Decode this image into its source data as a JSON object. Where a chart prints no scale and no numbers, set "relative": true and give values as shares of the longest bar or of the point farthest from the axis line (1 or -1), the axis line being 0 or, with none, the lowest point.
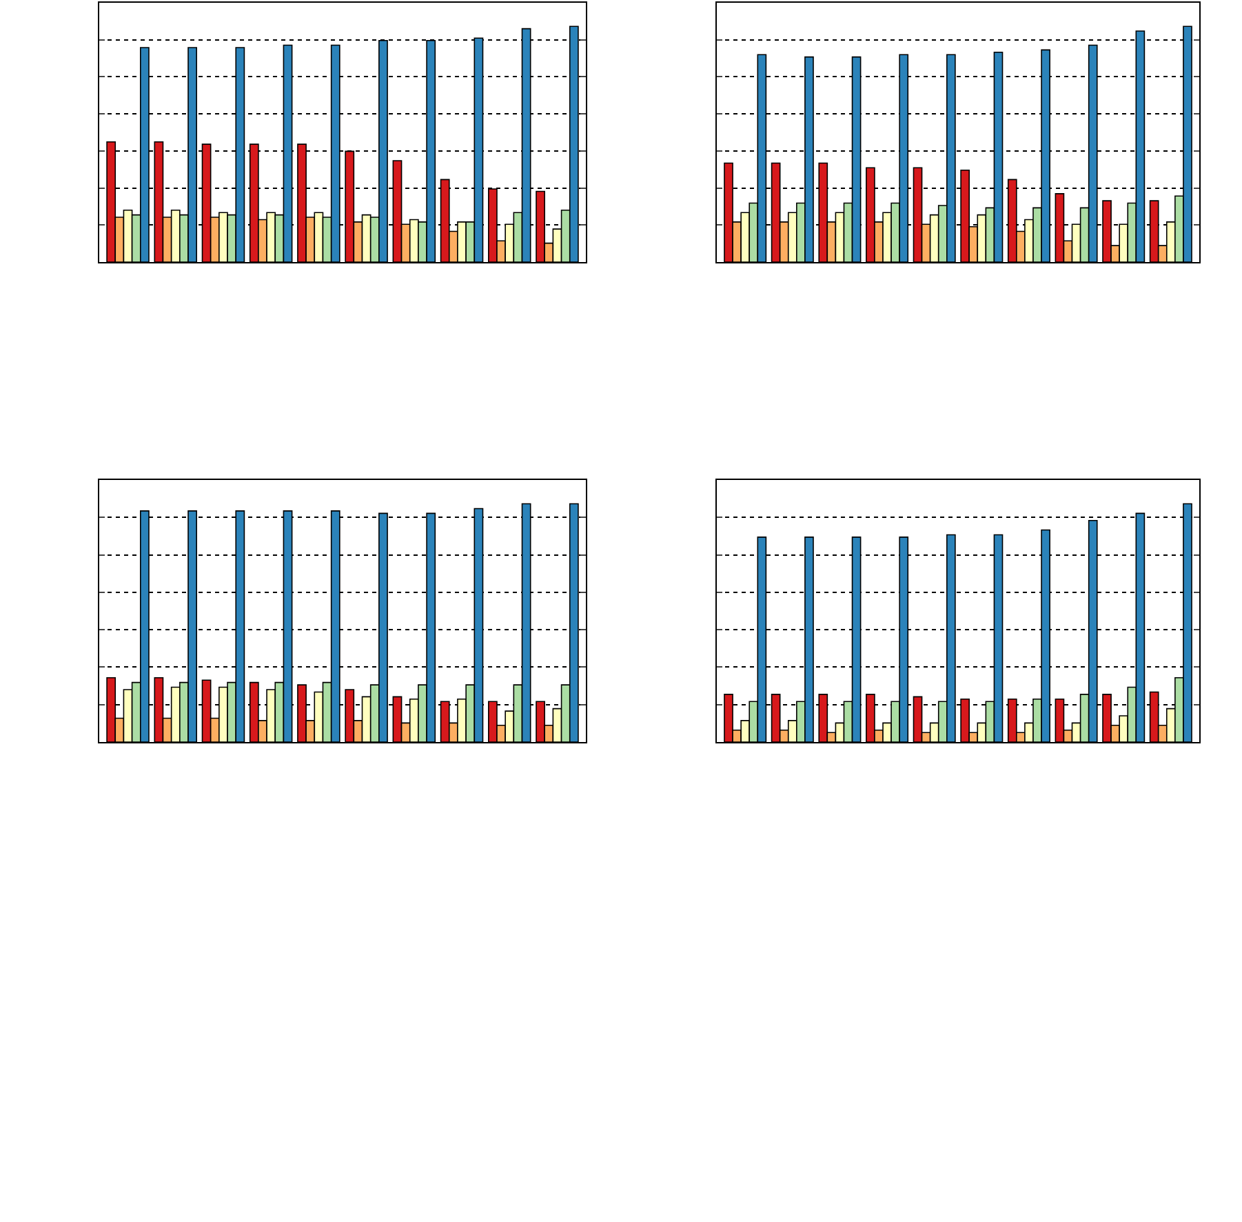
{
  "chart_data": [
    {
      "type": "bar",
      "relative": true,
      "grid": "y",
      "categories": [
        null,
        null,
        null,
        null,
        null,
        null,
        null,
        null,
        null,
        null
      ],
      "series": [
        {
          "color": "#d7191c",
          "values": [
            0.51,
            0.51,
            0.5,
            0.5,
            0.5,
            0.47,
            0.43,
            0.35,
            0.31,
            0.3
          ]
        },
        {
          "color": "#fdae61",
          "values": [
            0.19,
            0.19,
            0.19,
            0.18,
            0.19,
            0.17,
            0.16,
            0.13,
            0.09,
            0.08
          ]
        },
        {
          "color": "#ffffbf",
          "values": [
            0.22,
            0.22,
            0.21,
            0.21,
            0.21,
            0.2,
            0.18,
            0.17,
            0.16,
            0.14
          ]
        },
        {
          "color": "#abdda4",
          "values": [
            0.2,
            0.2,
            0.2,
            0.2,
            0.19,
            0.19,
            0.17,
            0.17,
            0.21,
            0.22
          ]
        },
        {
          "color": "#2b83ba",
          "values": [
            0.91,
            0.91,
            0.91,
            0.92,
            0.92,
            0.94,
            0.94,
            0.95,
            0.99,
            1
          ]
        }
      ]
    },
    {
      "type": "bar",
      "relative": true,
      "grid": "y",
      "categories": [
        null,
        null,
        null,
        null,
        null,
        null,
        null,
        null,
        null,
        null
      ],
      "series": [
        {
          "color": "#d7191c",
          "values": [
            0.42,
            0.42,
            0.42,
            0.4,
            0.4,
            0.39,
            0.35,
            0.29,
            0.26,
            0.26
          ]
        },
        {
          "color": "#fdae61",
          "values": [
            0.17,
            0.17,
            0.17,
            0.17,
            0.16,
            0.15,
            0.13,
            0.09,
            0.07,
            0.07
          ]
        },
        {
          "color": "#ffffbf",
          "values": [
            0.21,
            0.21,
            0.21,
            0.21,
            0.2,
            0.2,
            0.18,
            0.16,
            0.16,
            0.17
          ]
        },
        {
          "color": "#abdda4",
          "values": [
            0.25,
            0.25,
            0.25,
            0.25,
            0.24,
            0.23,
            0.23,
            0.23,
            0.25,
            0.28
          ]
        },
        {
          "color": "#2b83ba",
          "values": [
            0.88,
            0.87,
            0.87,
            0.88,
            0.88,
            0.89,
            0.9,
            0.92,
            0.98,
            1
          ]
        }
      ]
    },
    {
      "type": "bar",
      "relative": true,
      "grid": "y",
      "categories": [
        null,
        null,
        null,
        null,
        null,
        null,
        null,
        null,
        null,
        null
      ],
      "series": [
        {
          "color": "#d7191c",
          "values": [
            0.27,
            0.27,
            0.26,
            0.25,
            0.24,
            0.22,
            0.19,
            0.17,
            0.17,
            0.17
          ]
        },
        {
          "color": "#fdae61",
          "values": [
            0.1,
            0.1,
            0.1,
            0.09,
            0.09,
            0.09,
            0.08,
            0.08,
            0.07,
            0.07
          ]
        },
        {
          "color": "#ffffbf",
          "values": [
            0.22,
            0.23,
            0.23,
            0.22,
            0.21,
            0.19,
            0.18,
            0.18,
            0.13,
            0.14
          ]
        },
        {
          "color": "#abdda4",
          "values": [
            0.25,
            0.25,
            0.25,
            0.25,
            0.25,
            0.24,
            0.24,
            0.24,
            0.24,
            0.24
          ]
        },
        {
          "color": "#2b83ba",
          "values": [
            0.97,
            0.97,
            0.97,
            0.97,
            0.97,
            0.96,
            0.96,
            0.98,
            1,
            1
          ]
        }
      ]
    },
    {
      "type": "bar",
      "relative": true,
      "grid": "y",
      "categories": [
        null,
        null,
        null,
        null,
        null,
        null,
        null,
        null,
        null,
        null
      ],
      "series": [
        {
          "color": "#d7191c",
          "values": [
            0.2,
            0.2,
            0.2,
            0.2,
            0.19,
            0.18,
            0.18,
            0.18,
            0.2,
            0.21
          ]
        },
        {
          "color": "#fdae61",
          "values": [
            0.05,
            0.05,
            0.04,
            0.05,
            0.04,
            0.04,
            0.04,
            0.05,
            0.07,
            0.07
          ]
        },
        {
          "color": "#ffffbf",
          "values": [
            0.09,
            0.09,
            0.08,
            0.08,
            0.08,
            0.08,
            0.08,
            0.08,
            0.11,
            0.14
          ]
        },
        {
          "color": "#abdda4",
          "values": [
            0.17,
            0.17,
            0.17,
            0.17,
            0.17,
            0.17,
            0.18,
            0.2,
            0.23,
            0.27
          ]
        },
        {
          "color": "#2b83ba",
          "values": [
            0.86,
            0.86,
            0.86,
            0.86,
            0.87,
            0.87,
            0.89,
            0.93,
            0.96,
            1
          ]
        }
      ]
    }
  ]
}
